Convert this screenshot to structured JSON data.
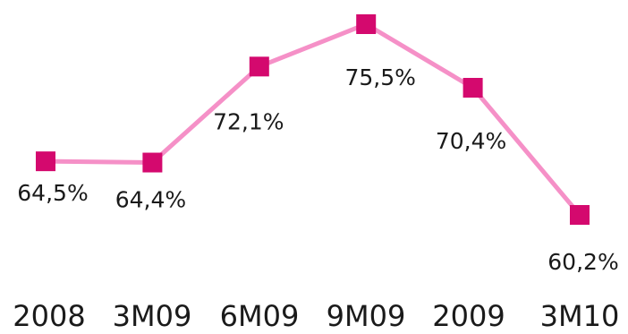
{
  "chart_data": {
    "type": "line",
    "title": "",
    "xlabel": "",
    "ylabel": "",
    "categories": [
      "2008",
      "3M09",
      "6M09",
      "9M09",
      "2009",
      "3M10"
    ],
    "series": [
      {
        "values": [
          64.5,
          64.4,
          72.1,
          75.5,
          70.4,
          60.2
        ],
        "labels": [
          "64,5%",
          "64,4%",
          "72,1%",
          "75,5%",
          "70,4%",
          "60,2%"
        ],
        "line_color": "#f590c7",
        "marker_color": "#d4096e",
        "marker": "square"
      }
    ],
    "ylim": [
      60,
      76
    ],
    "grid": false,
    "legend": "none",
    "axes_visible": false
  }
}
